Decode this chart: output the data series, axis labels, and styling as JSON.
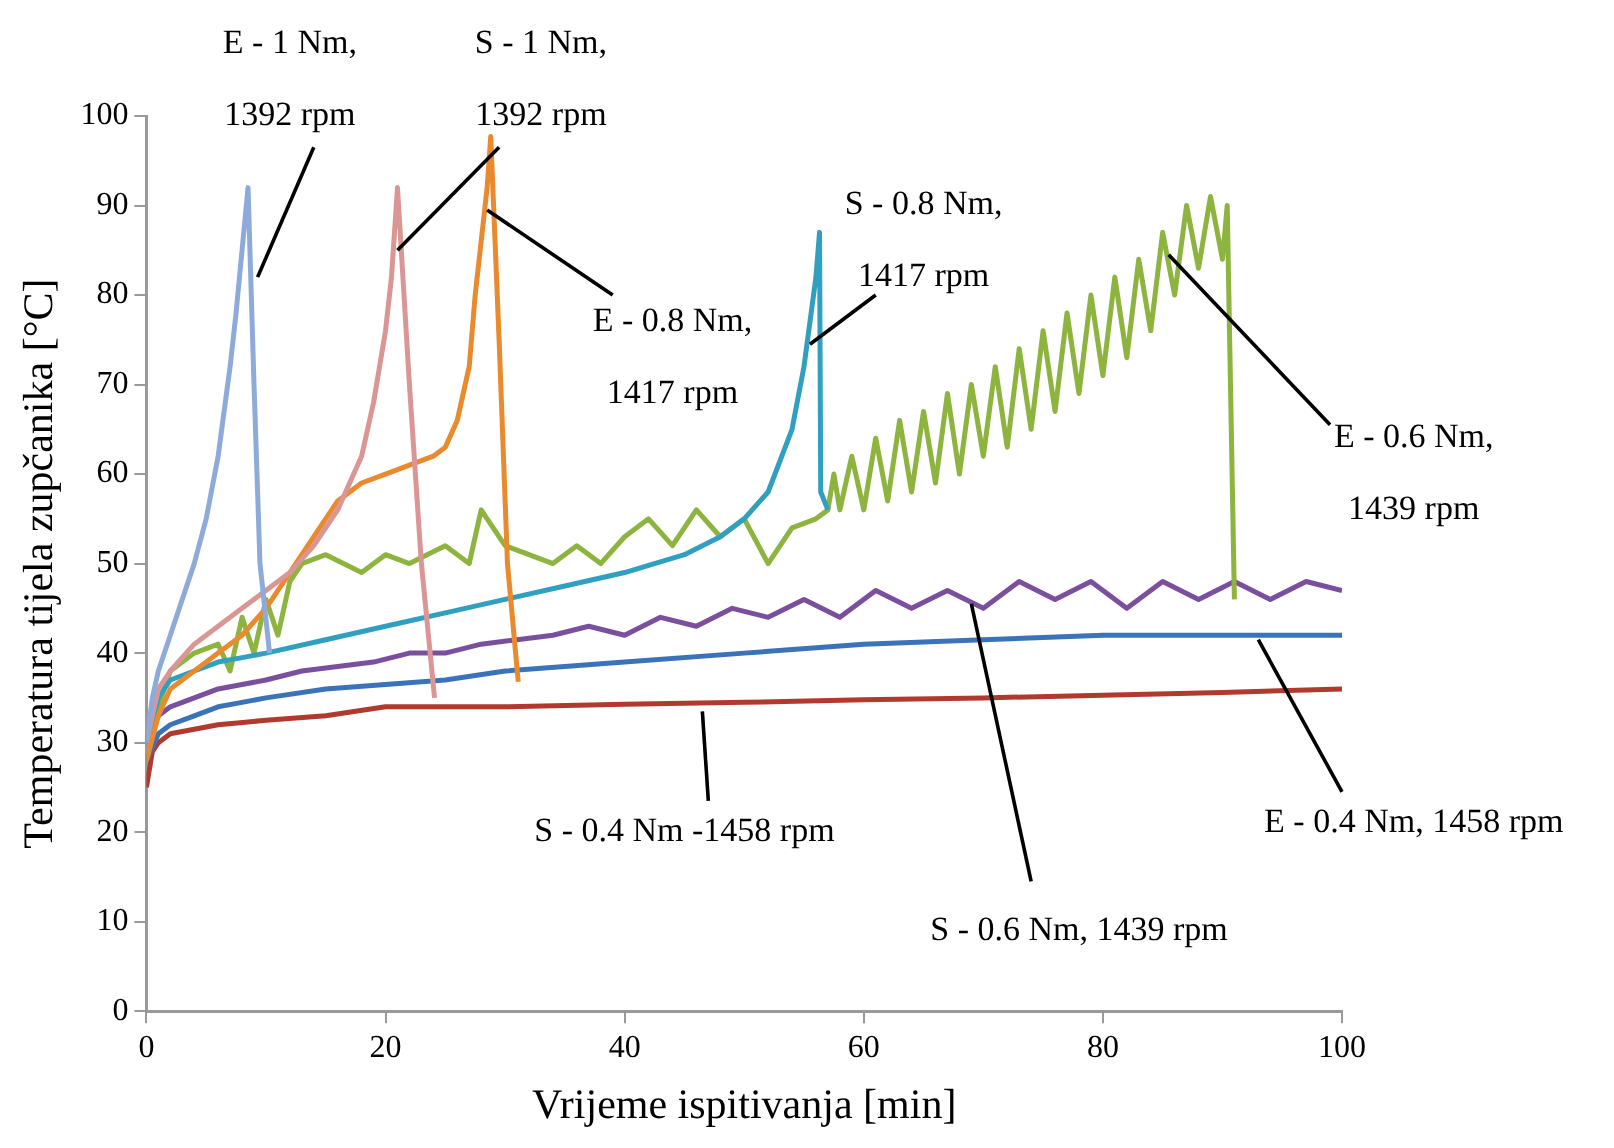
{
  "chart_data": {
    "type": "line",
    "xlabel": "Vrijeme ispitivanja [min]",
    "ylabel": "Temperatura tijela zupčanika [°C]",
    "xlim": [
      0,
      100
    ],
    "xticks": [
      0,
      20,
      40,
      60,
      80,
      100
    ],
    "ylim": [
      0,
      100
    ],
    "yticks": [
      0,
      10,
      20,
      30,
      40,
      50,
      60,
      70,
      80,
      90,
      100
    ],
    "grid": false,
    "legend": false,
    "marker": "none",
    "line_style": "solid",
    "series": [
      {
        "name": "E - 1 Nm, 1392 rpm",
        "color": "#8eaadb",
        "x": [
          0,
          0.5,
          1,
          2,
          3,
          4,
          5,
          6,
          7,
          7.5,
          8,
          8.5,
          9,
          9.5,
          10.3
        ],
        "values": [
          30,
          35,
          38,
          42,
          46,
          50,
          55,
          62,
          72,
          78,
          85,
          92,
          70,
          50,
          40
        ]
      },
      {
        "name": "S - 1 Nm, 1392 rpm",
        "color": "#d99694",
        "x": [
          0,
          1,
          2,
          4,
          6,
          8,
          10,
          12,
          14,
          16,
          18,
          19,
          20,
          20.5,
          21,
          22,
          23,
          24.1
        ],
        "values": [
          30,
          36,
          38,
          41,
          43,
          45,
          47,
          49,
          52,
          56,
          62,
          68,
          76,
          82,
          92,
          70,
          50,
          35
        ]
      },
      {
        "name": "E - 0.8 Nm, 1417 rpm",
        "color": "#e98a2e",
        "x": [
          0,
          1,
          2,
          4,
          6,
          8,
          10,
          12,
          14,
          16,
          18,
          20,
          22,
          24,
          25,
          26,
          27,
          27.5,
          28,
          28.5,
          28.8,
          29.5,
          30.2,
          31.1
        ],
        "values": [
          28,
          33,
          36,
          38,
          40,
          42,
          45,
          49,
          53,
          57,
          59,
          60,
          61,
          62,
          63,
          66,
          72,
          80,
          86,
          92,
          97.7,
          75,
          50,
          36.8
        ]
      },
      {
        "name": "S - 0.8 Nm, 1417 rpm",
        "color": "#31a0c0",
        "x": [
          0,
          1,
          2,
          4,
          6,
          8,
          10,
          15,
          20,
          25,
          30,
          35,
          40,
          45,
          48,
          50,
          52,
          54,
          55,
          56,
          56.3,
          56.4,
          57
        ],
        "values": [
          30,
          35,
          37,
          38,
          39,
          39.5,
          40,
          41.5,
          43,
          44.5,
          46,
          47.5,
          49,
          51,
          53,
          55,
          58,
          65,
          72,
          82,
          87,
          58,
          56
        ]
      },
      {
        "name": "E - 0.6 Nm, 1439 rpm",
        "color": "#8db43e",
        "x": [
          0,
          2,
          4,
          6,
          7,
          8,
          9,
          10,
          11,
          12,
          13,
          15,
          18,
          20,
          22,
          25,
          27,
          28,
          30,
          32,
          34,
          36,
          38,
          40,
          42,
          44,
          46,
          48,
          50,
          52,
          54,
          56,
          57,
          57.5,
          58,
          59,
          60,
          61,
          62,
          63,
          64,
          65,
          66,
          67,
          68,
          69,
          70,
          71,
          72,
          73,
          74,
          75,
          76,
          77,
          78,
          79,
          80,
          81,
          82,
          83,
          84,
          85,
          86,
          87,
          88,
          89,
          90,
          90.4,
          91
        ],
        "values": [
          30,
          38,
          40,
          41,
          38,
          44,
          40,
          46,
          42,
          48,
          50,
          51,
          49,
          51,
          50,
          52,
          50,
          56,
          52,
          51,
          50,
          52,
          50,
          53,
          55,
          52,
          56,
          53,
          55,
          50,
          54,
          55,
          56,
          60,
          56,
          62,
          56,
          64,
          57,
          66,
          58,
          67,
          59,
          69,
          60,
          70,
          62,
          72,
          63,
          74,
          65,
          76,
          67,
          78,
          69,
          80,
          71,
          82,
          73,
          84,
          76,
          87,
          80,
          90,
          83,
          91,
          84,
          90,
          46
        ]
      },
      {
        "name": "S - 0.6 Nm, 1439 rpm",
        "color": "#7a4f9e",
        "x": [
          0,
          1,
          2,
          4,
          6,
          8,
          10,
          13,
          16,
          19,
          22,
          25,
          28,
          31,
          34,
          37,
          40,
          43,
          46,
          49,
          52,
          55,
          58,
          61,
          64,
          67,
          70,
          73,
          76,
          79,
          82,
          85,
          88,
          91,
          94,
          97,
          100
        ],
        "values": [
          30,
          33,
          34,
          35,
          36,
          36.5,
          37,
          38,
          38.5,
          39,
          40,
          40,
          41,
          41.5,
          42,
          43,
          42,
          44,
          43,
          45,
          44,
          46,
          44,
          47,
          45,
          47,
          45,
          48,
          46,
          48,
          45,
          48,
          46,
          48,
          46,
          48,
          47
        ]
      },
      {
        "name": "E - 0.4 Nm, 1458 rpm",
        "color": "#3b73b9",
        "x": [
          0,
          1,
          2,
          4,
          6,
          8,
          10,
          15,
          20,
          25,
          30,
          40,
          50,
          60,
          70,
          80,
          90,
          100
        ],
        "values": [
          28,
          31,
          32,
          33,
          34,
          34.5,
          35,
          36,
          36.5,
          37,
          38,
          39,
          40,
          41,
          41.5,
          42,
          42,
          42
        ]
      },
      {
        "name": "S - 0.4 Nm -1458 rpm",
        "color": "#b03a2e",
        "x": [
          0,
          0.5,
          1,
          2,
          4,
          6,
          10,
          15,
          20,
          30,
          40,
          50,
          60,
          70,
          80,
          90,
          100
        ],
        "values": [
          25,
          29,
          30,
          31,
          31.5,
          32,
          32.5,
          33,
          34,
          34,
          34.3,
          34.5,
          34.8,
          35,
          35.3,
          35.6,
          36
        ]
      }
    ]
  }
}
